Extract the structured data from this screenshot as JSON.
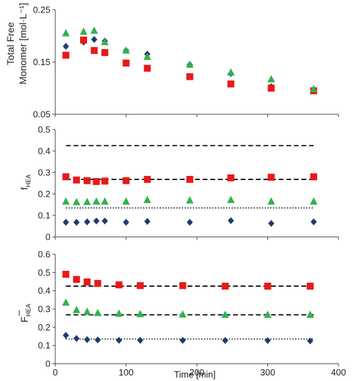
{
  "chart_data": {
    "type": "scatter",
    "shared_x": {
      "label": "Time [min]",
      "lim": [
        0,
        400
      ],
      "ticks": [
        0,
        100,
        200,
        300,
        400
      ]
    },
    "series_colors": {
      "diamond": "#1f3a6e",
      "square": "#e8191a",
      "triangle": "#2fb34a"
    },
    "panels": [
      {
        "id": "top",
        "ylabel_lines": [
          "Total Free",
          "Monomer [mol·L⁻¹]"
        ],
        "ylim": [
          0.05,
          0.25
        ],
        "yticks": [
          "0.05",
          "0.15",
          "0.25"
        ],
        "ytick_values": [
          0.05,
          0.15,
          0.25
        ],
        "series": [
          {
            "marker": "diamond",
            "x": [
              15,
              40,
              55,
              70,
              100,
              130,
              190,
              248,
              305,
              365
            ],
            "y": [
              0.18,
              0.188,
              0.193,
              0.19,
              0.172,
              0.165,
              0.145,
              0.128,
              0.103,
              0.097
            ]
          },
          {
            "marker": "square",
            "x": [
              15,
              40,
              55,
              70,
              100,
              130,
              190,
              248,
              305,
              365
            ],
            "y": [
              0.163,
              0.192,
              0.172,
              0.168,
              0.148,
              0.138,
              0.122,
              0.108,
              0.1,
              0.095
            ]
          },
          {
            "marker": "triangle",
            "x": [
              15,
              40,
              55,
              70,
              100,
              130,
              190,
              248,
              305,
              365
            ],
            "y": [
              0.205,
              0.208,
              0.21,
              0.188,
              0.172,
              0.16,
              0.145,
              0.13,
              0.117,
              0.098
            ]
          }
        ],
        "ref_lines": []
      },
      {
        "id": "middle",
        "ylabel_main": "f",
        "ylabel_sub": "HEA",
        "ylim": [
          0,
          0.5
        ],
        "yticks": [
          "0",
          "0.1",
          "0.2",
          "0.3",
          "0.4",
          "0.5"
        ],
        "ytick_values": [
          0,
          0.1,
          0.2,
          0.3,
          0.4,
          0.5
        ],
        "series": [
          {
            "marker": "diamond",
            "x": [
              15,
              30,
              45,
              58,
              70,
              100,
              130,
              190,
              248,
              305,
              365
            ],
            "y": [
              0.068,
              0.068,
              0.07,
              0.074,
              0.074,
              0.068,
              0.072,
              0.068,
              0.076,
              0.063,
              0.07
            ]
          },
          {
            "marker": "square",
            "x": [
              15,
              30,
              45,
              58,
              70,
              100,
              130,
              190,
              248,
              305,
              365
            ],
            "y": [
              0.28,
              0.265,
              0.262,
              0.258,
              0.26,
              0.262,
              0.268,
              0.268,
              0.275,
              0.278,
              0.28
            ]
          },
          {
            "marker": "triangle",
            "x": [
              15,
              30,
              45,
              58,
              70,
              100,
              130,
              190,
              248,
              305,
              365
            ],
            "y": [
              0.165,
              0.162,
              0.163,
              0.165,
              0.165,
              0.165,
              0.172,
              0.17,
              0.172,
              0.165,
              0.165
            ]
          }
        ],
        "ref_lines": [
          {
            "style": "dashed",
            "y": 0.425,
            "x": [
              15,
              365
            ]
          },
          {
            "style": "dashed",
            "y": 0.268,
            "x": [
              15,
              365
            ]
          },
          {
            "style": "dotted",
            "y": 0.135,
            "x": [
              15,
              365
            ]
          }
        ]
      },
      {
        "id": "bottom",
        "ylabel_main": "F",
        "ylabel_sub": "HEA",
        "ylabel_overbar": true,
        "ylim": [
          0,
          0.6
        ],
        "yticks": [
          "0",
          "0.1",
          "0.2",
          "0.3",
          "0.4",
          "0.5",
          "0.6"
        ],
        "ytick_values": [
          0,
          0.1,
          0.2,
          0.3,
          0.4,
          0.5,
          0.6
        ],
        "series": [
          {
            "marker": "diamond",
            "x": [
              15,
              30,
              45,
              60,
              90,
              120,
              180,
              240,
              300,
              360
            ],
            "y": [
              0.155,
              0.138,
              0.132,
              0.13,
              0.128,
              0.128,
              0.128,
              0.127,
              0.127,
              0.125
            ]
          },
          {
            "marker": "square",
            "x": [
              15,
              30,
              45,
              60,
              90,
              120,
              180,
              240,
              300,
              360
            ],
            "y": [
              0.49,
              0.462,
              0.448,
              0.44,
              0.432,
              0.428,
              0.428,
              0.425,
              0.425,
              0.425
            ]
          },
          {
            "marker": "triangle",
            "x": [
              15,
              30,
              45,
              60,
              90,
              120,
              180,
              240,
              300,
              360
            ],
            "y": [
              0.335,
              0.295,
              0.285,
              0.278,
              0.275,
              0.272,
              0.27,
              0.268,
              0.268,
              0.268
            ]
          }
        ],
        "ref_lines": [
          {
            "style": "dashed",
            "y": 0.425,
            "x": [
              15,
              365
            ]
          },
          {
            "style": "dashed",
            "y": 0.268,
            "x": [
              15,
              365
            ]
          },
          {
            "style": "dotted",
            "y": 0.135,
            "x": [
              15,
              365
            ]
          }
        ]
      }
    ]
  }
}
